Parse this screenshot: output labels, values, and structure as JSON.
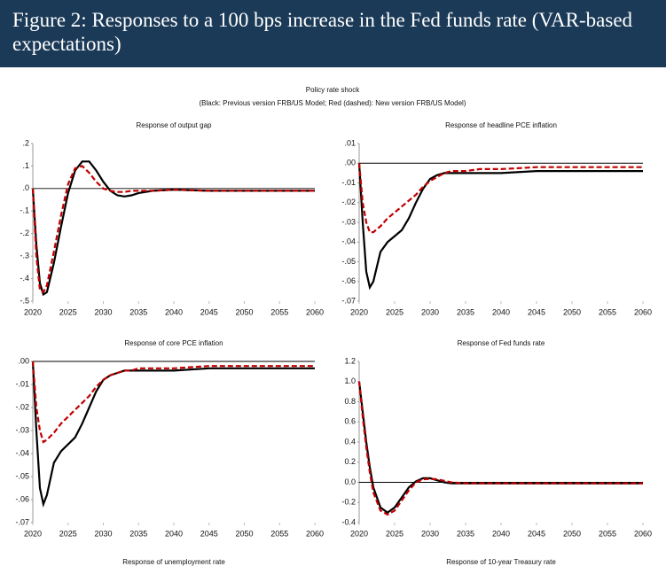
{
  "header": {
    "title": "Figure 2: Responses to a 100 bps increase in the Fed funds rate (VAR-based expectations)"
  },
  "subtitle": "Policy rate shock",
  "note": "(Black: Previous version FRB/US Model; Red (dashed): New version FRB/US Model)",
  "chart_data": [
    {
      "type": "line",
      "title": "Response of output gap",
      "x": [
        2020,
        2020.5,
        2021,
        2021.5,
        2022,
        2023,
        2024,
        2025,
        2026,
        2027,
        2028,
        2029,
        2030,
        2031,
        2032,
        2033,
        2034,
        2035,
        2037,
        2040,
        2045,
        2050,
        2055,
        2060
      ],
      "series": [
        {
          "color": "#000000",
          "values": [
            0,
            -0.25,
            -0.42,
            -0.47,
            -0.46,
            -0.33,
            -0.17,
            -0.02,
            0.08,
            0.12,
            0.12,
            0.08,
            0.03,
            -0.01,
            -0.03,
            -0.035,
            -0.03,
            -0.02,
            -0.01,
            -0.005,
            -0.01,
            -0.01,
            -0.01,
            -0.01
          ]
        },
        {
          "color": "#c00000",
          "dashed": true,
          "values": [
            0,
            -0.3,
            -0.45,
            -0.46,
            -0.43,
            -0.28,
            -0.12,
            0.02,
            0.09,
            0.1,
            0.07,
            0.03,
            0,
            -0.01,
            -0.015,
            -0.015,
            -0.01,
            -0.01,
            -0.01,
            -0.005,
            -0.01,
            -0.01,
            -0.01,
            -0.01
          ]
        }
      ],
      "xlim": [
        2020,
        2060
      ],
      "xticks": [
        2020,
        2025,
        2030,
        2035,
        2040,
        2045,
        2050,
        2055,
        2060
      ],
      "ylim": [
        -0.5,
        0.2
      ],
      "yticks": [
        {
          "value": 0.2,
          "label": ".2"
        },
        {
          "value": 0.1,
          "label": ".1"
        },
        {
          "value": 0,
          "label": ".0"
        },
        {
          "value": -0.1,
          "label": "-.1"
        },
        {
          "value": -0.2,
          "label": "-.2"
        },
        {
          "value": -0.3,
          "label": "-.3"
        },
        {
          "value": -0.4,
          "label": "-.4"
        },
        {
          "value": -0.5,
          "label": "-.5"
        }
      ]
    },
    {
      "type": "line",
      "title": "Response of headline PCE inflation",
      "x": [
        2020,
        2020.5,
        2021,
        2021.5,
        2022,
        2023,
        2024,
        2025,
        2026,
        2027,
        2028,
        2029,
        2030,
        2031,
        2032,
        2033,
        2034,
        2035,
        2037,
        2040,
        2045,
        2050,
        2055,
        2060
      ],
      "series": [
        {
          "color": "#000000",
          "values": [
            0,
            -0.03,
            -0.055,
            -0.063,
            -0.06,
            -0.045,
            -0.04,
            -0.037,
            -0.034,
            -0.028,
            -0.02,
            -0.013,
            -0.008,
            -0.006,
            -0.005,
            -0.005,
            -0.005,
            -0.005,
            -0.005,
            -0.005,
            -0.004,
            -0.004,
            -0.004,
            -0.004
          ]
        },
        {
          "color": "#c00000",
          "dashed": true,
          "values": [
            0,
            -0.02,
            -0.03,
            -0.035,
            -0.035,
            -0.032,
            -0.028,
            -0.025,
            -0.022,
            -0.019,
            -0.016,
            -0.012,
            -0.009,
            -0.007,
            -0.005,
            -0.004,
            -0.004,
            -0.004,
            -0.003,
            -0.003,
            -0.002,
            -0.002,
            -0.002,
            -0.002
          ]
        }
      ],
      "xlim": [
        2020,
        2060
      ],
      "xticks": [
        2020,
        2025,
        2030,
        2035,
        2040,
        2045,
        2050,
        2055,
        2060
      ],
      "ylim": [
        -0.07,
        0.01
      ],
      "yticks": [
        {
          "value": 0.01,
          "label": ".01"
        },
        {
          "value": 0,
          "label": ".00"
        },
        {
          "value": -0.01,
          "label": "-.01"
        },
        {
          "value": -0.02,
          "label": "-.02"
        },
        {
          "value": -0.03,
          "label": "-.03"
        },
        {
          "value": -0.04,
          "label": "-.04"
        },
        {
          "value": -0.05,
          "label": "-.05"
        },
        {
          "value": -0.06,
          "label": "-.06"
        },
        {
          "value": -0.07,
          "label": "-.07"
        }
      ]
    },
    {
      "type": "line",
      "title": "Response of core PCE inflation",
      "x": [
        2020,
        2020.5,
        2021,
        2021.5,
        2022,
        2023,
        2024,
        2025,
        2026,
        2027,
        2028,
        2029,
        2030,
        2031,
        2032,
        2033,
        2034,
        2035,
        2037,
        2040,
        2045,
        2050,
        2055,
        2060
      ],
      "series": [
        {
          "color": "#000000",
          "values": [
            0,
            -0.03,
            -0.055,
            -0.062,
            -0.058,
            -0.044,
            -0.039,
            -0.036,
            -0.033,
            -0.027,
            -0.02,
            -0.013,
            -0.008,
            -0.006,
            -0.005,
            -0.004,
            -0.004,
            -0.004,
            -0.004,
            -0.004,
            -0.003,
            -0.003,
            -0.003,
            -0.003
          ]
        },
        {
          "color": "#c00000",
          "dashed": true,
          "values": [
            0,
            -0.02,
            -0.03,
            -0.035,
            -0.034,
            -0.031,
            -0.027,
            -0.024,
            -0.021,
            -0.018,
            -0.015,
            -0.011,
            -0.008,
            -0.006,
            -0.005,
            -0.004,
            -0.004,
            -0.003,
            -0.003,
            -0.003,
            -0.002,
            -0.002,
            -0.002,
            -0.002
          ]
        }
      ],
      "xlim": [
        2020,
        2060
      ],
      "xticks": [
        2020,
        2025,
        2030,
        2035,
        2040,
        2045,
        2050,
        2055,
        2060
      ],
      "ylim": [
        -0.07,
        0
      ],
      "yticks": [
        {
          "value": 0,
          "label": ".00"
        },
        {
          "value": -0.01,
          "label": "-.01"
        },
        {
          "value": -0.02,
          "label": "-.02"
        },
        {
          "value": -0.03,
          "label": "-.03"
        },
        {
          "value": -0.04,
          "label": "-.04"
        },
        {
          "value": -0.05,
          "label": "-.05"
        },
        {
          "value": -0.06,
          "label": "-.06"
        },
        {
          "value": -0.07,
          "label": "-.07"
        }
      ]
    },
    {
      "type": "line",
      "title": "Response of Fed funds rate",
      "x": [
        2020,
        2020.5,
        2021,
        2021.5,
        2022,
        2023,
        2024,
        2025,
        2026,
        2027,
        2028,
        2029,
        2030,
        2031,
        2032,
        2033,
        2034,
        2035,
        2037,
        2040,
        2045,
        2050,
        2055,
        2060
      ],
      "series": [
        {
          "color": "#000000",
          "values": [
            1.0,
            0.7,
            0.4,
            0.15,
            -0.05,
            -0.25,
            -0.3,
            -0.25,
            -0.15,
            -0.05,
            0.01,
            0.04,
            0.04,
            0.02,
            0,
            -0.01,
            -0.01,
            -0.01,
            -0.01,
            -0.01,
            -0.01,
            -0.01,
            -0.01,
            -0.01
          ]
        },
        {
          "color": "#c00000",
          "dashed": true,
          "values": [
            1.0,
            0.65,
            0.35,
            0.1,
            -0.1,
            -0.28,
            -0.32,
            -0.28,
            -0.18,
            -0.08,
            0,
            0.03,
            0.035,
            0.03,
            0.015,
            0,
            -0.005,
            -0.01,
            -0.01,
            -0.01,
            -0.01,
            -0.01,
            -0.01,
            -0.01
          ]
        }
      ],
      "xlim": [
        2020,
        2060
      ],
      "xticks": [
        2020,
        2025,
        2030,
        2035,
        2040,
        2045,
        2050,
        2055,
        2060
      ],
      "ylim": [
        -0.4,
        1.2
      ],
      "yticks": [
        1.2,
        {
          "value": 1.0,
          "label": "1.0"
        },
        0.8,
        0.6,
        0.4,
        0.2,
        {
          "value": 0,
          "label": "0.0"
        },
        -0.2,
        -0.4
      ]
    },
    {
      "type": "line",
      "title": "Response of unemployment rate"
    },
    {
      "type": "line",
      "title": "Response of 10-year Treasury rate"
    }
  ]
}
